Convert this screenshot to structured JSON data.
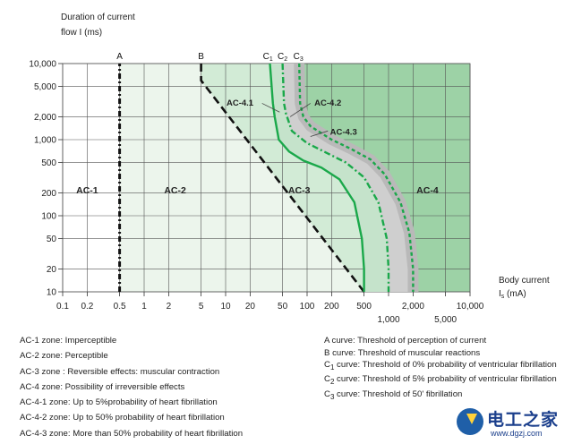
{
  "chart_data": {
    "type": "line",
    "x_scale": "log",
    "y_scale": "log",
    "xlim": [
      0.1,
      10000
    ],
    "ylim": [
      10,
      10000
    ],
    "grid": true,
    "ylabel_lines": [
      "Duration of current",
      "flow I (ms)"
    ],
    "xlabel_main": "Body current",
    "xlabel_sym": "I",
    "xlabel_sub": "s",
    "xlabel_unit": " (mA)",
    "x_ticks": [
      {
        "value": 0.1,
        "label": "0.1",
        "row": 0
      },
      {
        "value": 0.2,
        "label": "0.2",
        "row": 0
      },
      {
        "value": 0.5,
        "label": "0.5",
        "row": 0
      },
      {
        "value": 1,
        "label": "1",
        "row": 0
      },
      {
        "value": 2,
        "label": "2",
        "row": 0
      },
      {
        "value": 5,
        "label": "5",
        "row": 0
      },
      {
        "value": 10,
        "label": "10",
        "row": 0
      },
      {
        "value": 20,
        "label": "20",
        "row": 0
      },
      {
        "value": 50,
        "label": "50",
        "row": 0
      },
      {
        "value": 100,
        "label": "100",
        "row": 0
      },
      {
        "value": 200,
        "label": "200",
        "row": 0
      },
      {
        "value": 500,
        "label": "500",
        "row": 0
      },
      {
        "value": 1000,
        "label": "1,000",
        "row": 1
      },
      {
        "value": 2000,
        "label": "2,000",
        "row": 0
      },
      {
        "value": 5000,
        "label": "5,000",
        "row": 1
      },
      {
        "value": 10000,
        "label": "10,000",
        "row": 0
      }
    ],
    "y_ticks": [
      {
        "value": 10,
        "label": "10"
      },
      {
        "value": 20,
        "label": "20"
      },
      {
        "value": 50,
        "label": "50"
      },
      {
        "value": 100,
        "label": "100"
      },
      {
        "value": 200,
        "label": "200"
      },
      {
        "value": 500,
        "label": "500"
      },
      {
        "value": 1000,
        "label": "1,000"
      },
      {
        "value": 2000,
        "label": "2,000"
      },
      {
        "value": 5000,
        "label": "5,000"
      },
      {
        "value": 10000,
        "label": "10,000"
      }
    ],
    "curves": [
      {
        "name": "A",
        "color": "#111111",
        "dash": "6,3,2,3",
        "width": 3,
        "points": [
          [
            0.5,
            10
          ],
          [
            0.5,
            10000
          ]
        ]
      },
      {
        "name": "B",
        "color": "#111111",
        "dash": "9,5",
        "width": 2.6,
        "points": [
          [
            5,
            10000
          ],
          [
            5,
            6000
          ],
          [
            500,
            10
          ]
        ]
      },
      {
        "name": "C1",
        "color": "#1aa84a",
        "dash": "",
        "width": 2.4,
        "points": [
          [
            35,
            10000
          ],
          [
            38,
            3000
          ],
          [
            40,
            2000
          ],
          [
            45,
            1000
          ],
          [
            60,
            700
          ],
          [
            90,
            530
          ],
          [
            150,
            430
          ],
          [
            250,
            300
          ],
          [
            380,
            150
          ],
          [
            470,
            50
          ],
          [
            500,
            20
          ],
          [
            500,
            10
          ]
        ]
      },
      {
        "name": "C2",
        "color": "#1aa84a",
        "dash": "7,3,2,3",
        "width": 2.4,
        "points": [
          [
            50,
            10000
          ],
          [
            52,
            3000
          ],
          [
            55,
            2200
          ],
          [
            65,
            1300
          ],
          [
            100,
            900
          ],
          [
            200,
            620
          ],
          [
            300,
            500
          ],
          [
            500,
            320
          ],
          [
            750,
            150
          ],
          [
            950,
            50
          ],
          [
            1000,
            20
          ],
          [
            1000,
            10
          ]
        ]
      },
      {
        "name": "C3",
        "color": "#1aa84a",
        "dash": "4,3",
        "width": 2.4,
        "points": [
          [
            80,
            10000
          ],
          [
            82,
            3000
          ],
          [
            90,
            2000
          ],
          [
            110,
            1500
          ],
          [
            200,
            1000
          ],
          [
            350,
            750
          ],
          [
            600,
            550
          ],
          [
            900,
            350
          ],
          [
            1400,
            150
          ],
          [
            1800,
            60
          ],
          [
            2000,
            20
          ],
          [
            2000,
            10
          ]
        ]
      }
    ],
    "top_labels": [
      {
        "name": "A",
        "x": 0.5,
        "sub": ""
      },
      {
        "name": "B",
        "x": 5,
        "sub": ""
      },
      {
        "name": "C",
        "x": 33,
        "sub": "1"
      },
      {
        "name": "C",
        "x": 50,
        "sub": "2"
      },
      {
        "name": "C",
        "x": 78,
        "sub": "3"
      }
    ],
    "zones": [
      {
        "label": "AC-1",
        "x": 0.2,
        "y": 220,
        "fill": "#ffffff"
      },
      {
        "label": "AC-2",
        "x": 2.4,
        "y": 220,
        "fill": "#ecf5ec"
      },
      {
        "label": "AC-3",
        "x": 80,
        "y": 220,
        "fill": "#d2ebd6"
      },
      {
        "label": "AC-4",
        "x": 3000,
        "y": 220,
        "fill": "#9dd2a6"
      },
      {
        "label": "AC-4.1",
        "x": 15,
        "y": 3100,
        "fill": "#bbbbbb"
      },
      {
        "label": "AC-4.2",
        "x": 180,
        "y": 3100,
        "fill": "#bbbbbb"
      },
      {
        "label": "AC-4.3",
        "x": 280,
        "y": 1300,
        "fill": "#bbbbbb"
      }
    ],
    "legend_left": [
      "AC-1 zone: Imperceptible",
      "AC-2 zone: Perceptible",
      "AC-3 zone : Reversible effects: muscular contraction",
      "AC-4 zone: Possibility of irreversible effects",
      "AC-4-1 zone: Up to 5%probability of heart fibrillation",
      "AC-4-2 zone: Up to 50% probability of heart fibrillation",
      "AC-4-3 zone: More than 50% probability of heart fibrillation"
    ],
    "legend_right": [
      {
        "prefix": "A",
        "sub": "",
        "text": " curve: Threshold of perception of current"
      },
      {
        "prefix": "B",
        "sub": "",
        "text": " curve: Threshold of muscular reactions"
      },
      {
        "prefix": "C",
        "sub": "1",
        "text": " curve: Threshold of 0% probability of ventricular fibrillation"
      },
      {
        "prefix": "C",
        "sub": "2",
        "text": " curve: Threshold of 5% probability of ventricular fibrillation"
      },
      {
        "prefix": "C",
        "sub": "3",
        "text": " curve: Threshold of 50' fibrillation"
      }
    ]
  },
  "watermark": {
    "title": "电工之家",
    "url": "www.dgzj.com"
  }
}
